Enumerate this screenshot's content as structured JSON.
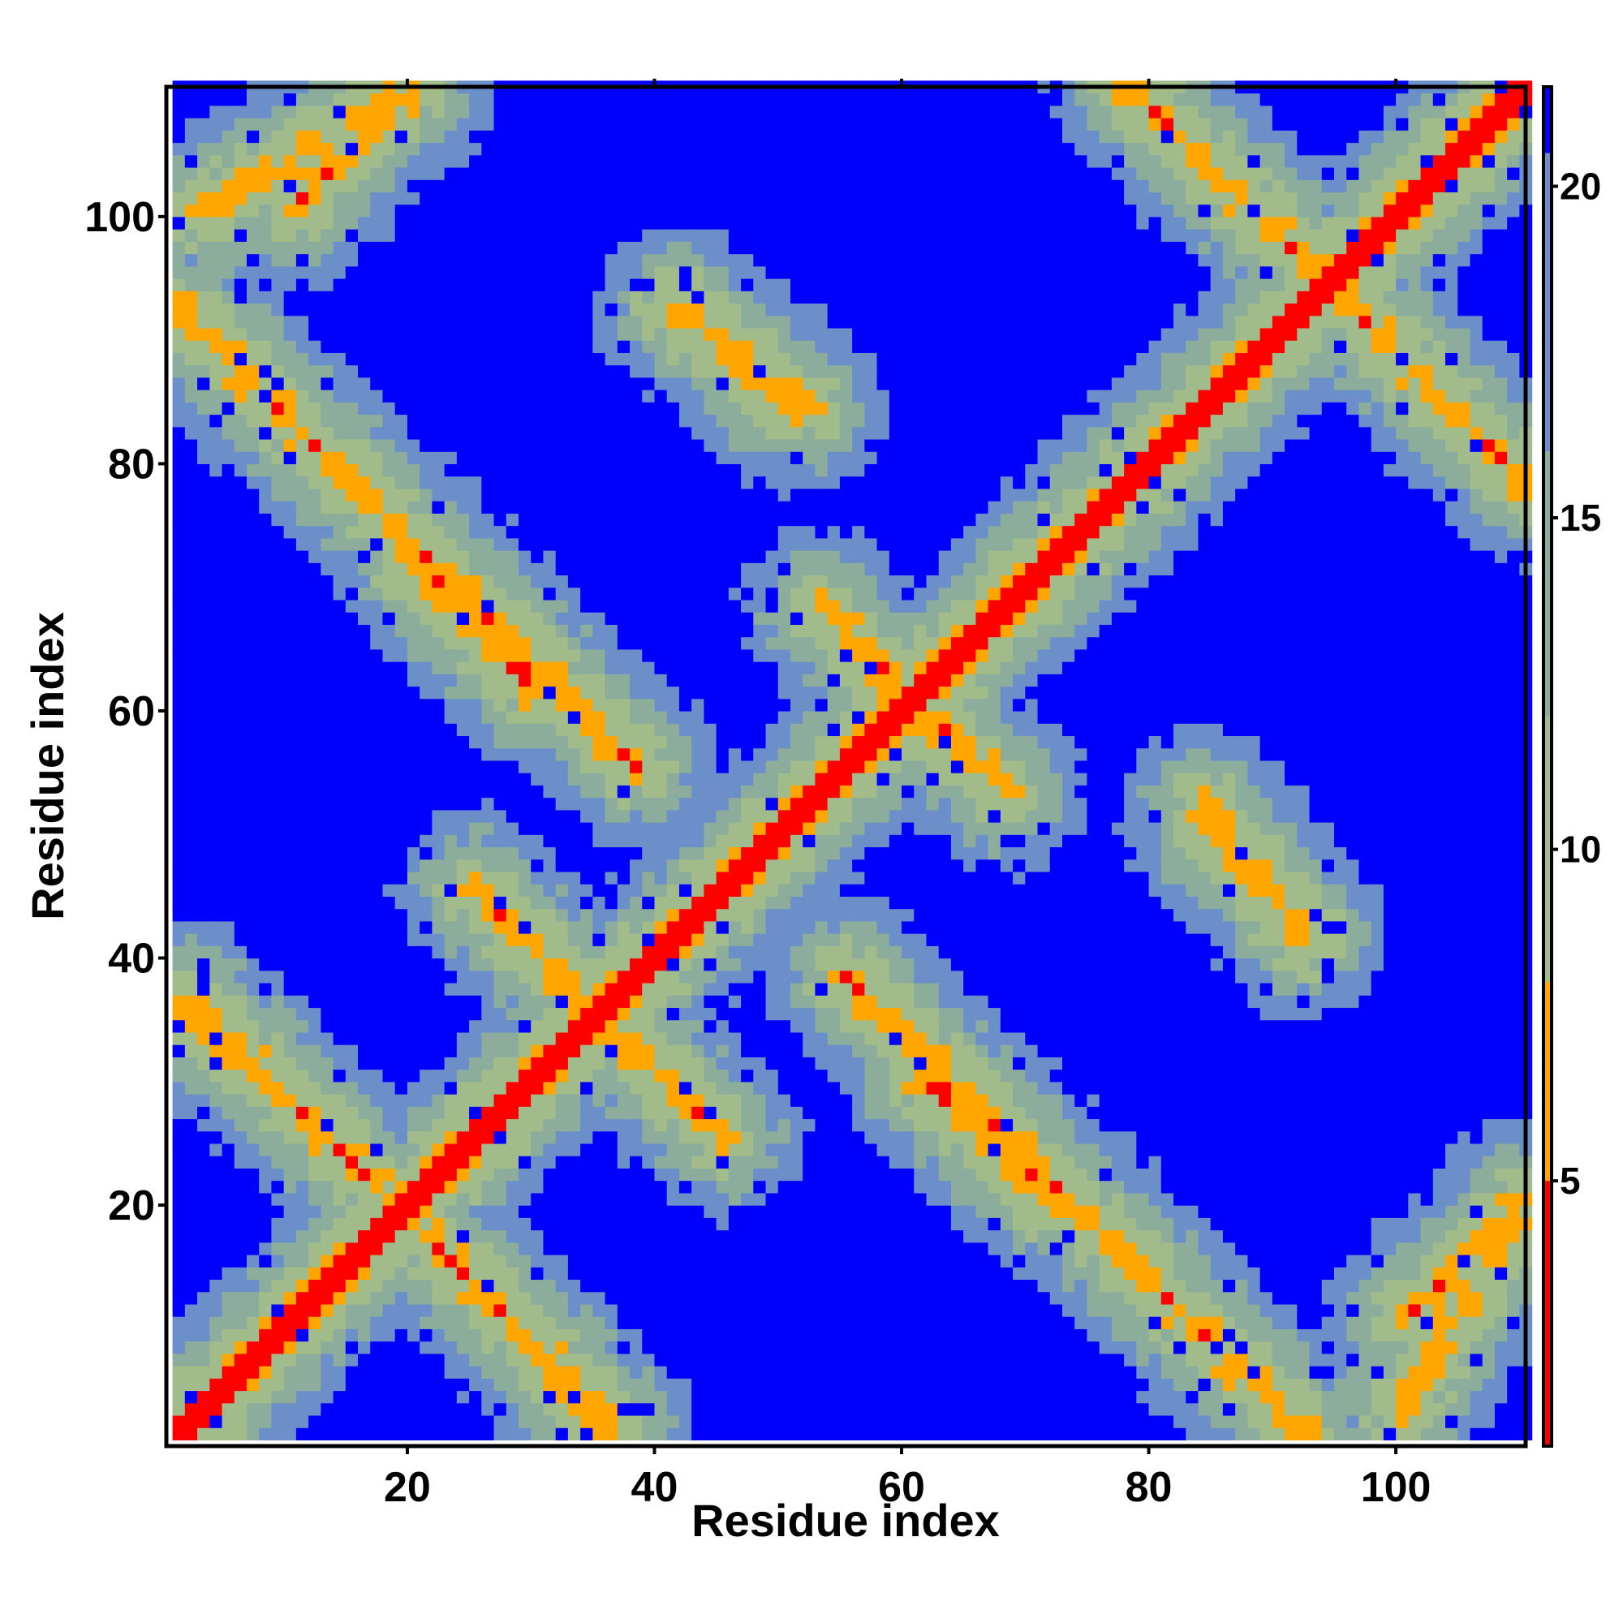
{
  "chart_data": {
    "type": "heatmap",
    "title": "",
    "xlabel": "Residue index",
    "ylabel": "Residue index",
    "n_residues": 110,
    "xlim": [
      1,
      110
    ],
    "ylim": [
      1,
      110
    ],
    "x_ticks": [
      20,
      40,
      60,
      80,
      100
    ],
    "y_ticks": [
      20,
      40,
      60,
      80,
      100
    ],
    "colorbar": {
      "range": [
        1,
        21.5
      ],
      "ticks": [
        5,
        10,
        15,
        20
      ],
      "bins": [
        {
          "from": 1,
          "to": 5,
          "color": "#ff0000"
        },
        {
          "from": 5,
          "to": 8,
          "color": "#ffa500"
        },
        {
          "from": 8,
          "to": 12,
          "color": "#a1bb8a"
        },
        {
          "from": 12,
          "to": 16,
          "color": "#8cac9c"
        },
        {
          "from": 16,
          "to": 20.5,
          "color": "#6b8fc8"
        },
        {
          "from": 20.5,
          "to": 21.5,
          "color": "#0000ff"
        }
      ]
    },
    "contact_bands": [
      {
        "x0": 1,
        "y0": 1,
        "x1": 110,
        "y1": 110,
        "strength": "diagonal"
      },
      {
        "x0": 2,
        "y0": 36,
        "x1": 36,
        "y1": 2
      },
      {
        "x0": 1,
        "y0": 92,
        "x1": 38,
        "y1": 55
      },
      {
        "x0": 3,
        "y0": 100,
        "x1": 20,
        "y1": 110
      },
      {
        "x0": 20,
        "y0": 71,
        "x1": 30,
        "y1": 61
      },
      {
        "x0": 30,
        "y0": 7,
        "x1": 36,
        "y1": 1
      },
      {
        "x0": 37,
        "y0": 33,
        "x1": 45,
        "y1": 25
      },
      {
        "x0": 41,
        "y0": 92,
        "x1": 52,
        "y1": 84
      },
      {
        "x0": 53,
        "y0": 68,
        "x1": 60,
        "y1": 61
      },
      {
        "x0": 60,
        "y0": 60,
        "x1": 68,
        "y1": 53
      },
      {
        "x0": 62,
        "y0": 30,
        "x1": 72,
        "y1": 20
      },
      {
        "x0": 72,
        "y0": 72,
        "x1": 81,
        "y1": 81
      },
      {
        "x0": 81,
        "y0": 107,
        "x1": 110,
        "y1": 78
      },
      {
        "x0": 84,
        "y0": 50,
        "x1": 92,
        "y1": 42
      },
      {
        "x0": 100,
        "y0": 10,
        "x1": 110,
        "y1": 20
      }
    ],
    "grid": false,
    "legend": "none"
  }
}
